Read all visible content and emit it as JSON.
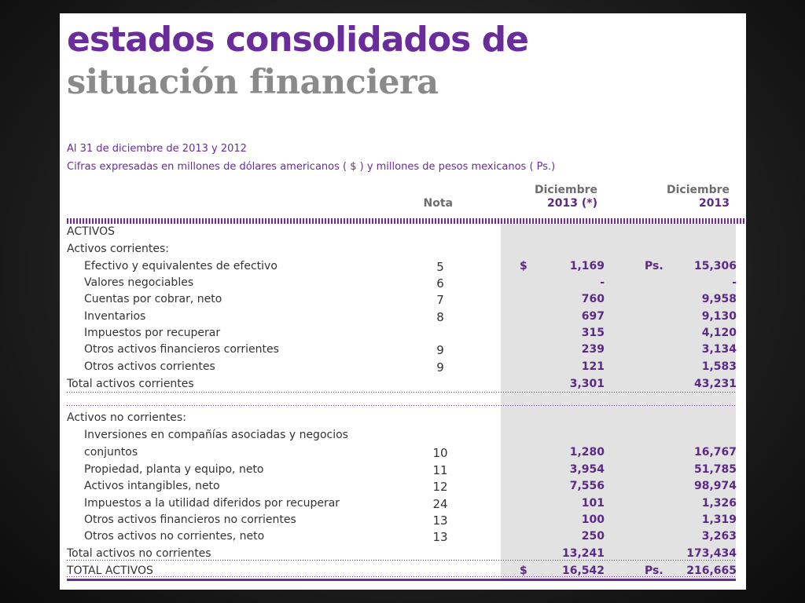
{
  "title": {
    "line1": "estados consolidados de",
    "line2": "situación financiera"
  },
  "subtitle": {
    "date": "Al 31 de diciembre de 2013 y 2012",
    "units": "Cifras expresadas en millones de dólares americanos ( $ ) y millones de pesos mexicanos ( Ps.)"
  },
  "headers": {
    "nota": "Nota",
    "usd_line1": "Diciembre",
    "usd_line2": "2013 (*)",
    "mxn_line1": "Diciembre",
    "mxn_line2": "2013"
  },
  "rows": [
    {
      "label": "ACTIVOS",
      "nota": "",
      "cur1": "",
      "usd": "",
      "cur2": "",
      "mxn": ""
    },
    {
      "label": "Activos corrientes:",
      "nota": "",
      "cur1": "",
      "usd": "",
      "cur2": "",
      "mxn": ""
    },
    {
      "label": "Efectivo y equivalentes de efectivo",
      "nota": "5",
      "cur1": "$",
      "usd": "1,169",
      "cur2": "Ps.",
      "mxn": "15,306"
    },
    {
      "label": "Valores negociables",
      "nota": "6",
      "cur1": "",
      "usd": "-",
      "cur2": "",
      "mxn": "-"
    },
    {
      "label": "Cuentas por cobrar, neto",
      "nota": "7",
      "cur1": "",
      "usd": "760",
      "cur2": "",
      "mxn": "9,958"
    },
    {
      "label": "Inventarios",
      "nota": "8",
      "cur1": "",
      "usd": "697",
      "cur2": "",
      "mxn": "9,130"
    },
    {
      "label": "Impuestos por recuperar",
      "nota": "",
      "cur1": "",
      "usd": "315",
      "cur2": "",
      "mxn": "4,120"
    },
    {
      "label": "Otros activos financieros corrientes",
      "nota": "9",
      "cur1": "",
      "usd": "239",
      "cur2": "",
      "mxn": "3,134"
    },
    {
      "label": "Otros activos corrientes",
      "nota": "9",
      "cur1": "",
      "usd": "121",
      "cur2": "",
      "mxn": "1,583"
    },
    {
      "label": "Total activos corrientes",
      "nota": "",
      "cur1": "",
      "usd": "3,301",
      "cur2": "",
      "mxn": "43,231"
    },
    {
      "label": "Activos no corrientes:",
      "nota": "",
      "cur1": "",
      "usd": "",
      "cur2": "",
      "mxn": ""
    },
    {
      "label": "Inversiones en compañías asociadas y negocios",
      "nota": "",
      "cur1": "",
      "usd": "",
      "cur2": "",
      "mxn": ""
    },
    {
      "label": "conjuntos",
      "nota": "10",
      "cur1": "",
      "usd": "1,280",
      "cur2": "",
      "mxn": "16,767"
    },
    {
      "label": "Propiedad, planta y equipo, neto",
      "nota": "11",
      "cur1": "",
      "usd": "3,954",
      "cur2": "",
      "mxn": "51,785"
    },
    {
      "label": "Activos intangibles, neto",
      "nota": "12",
      "cur1": "",
      "usd": "7,556",
      "cur2": "",
      "mxn": "98,974"
    },
    {
      "label": "Impuestos a la utilidad diferidos por recuperar",
      "nota": "24",
      "cur1": "",
      "usd": "101",
      "cur2": "",
      "mxn": "1,326"
    },
    {
      "label": "Otros activos financieros no corrientes",
      "nota": "13",
      "cur1": "",
      "usd": "100",
      "cur2": "",
      "mxn": "1,319"
    },
    {
      "label": "Otros activos no corrientes, neto",
      "nota": "13",
      "cur1": "",
      "usd": "250",
      "cur2": "",
      "mxn": "3,263"
    },
    {
      "label": "Total activos no corrientes",
      "nota": "",
      "cur1": "",
      "usd": "13,241",
      "cur2": "",
      "mxn": "173,434"
    },
    {
      "label": "TOTAL ACTIVOS",
      "nota": "",
      "cur1": "$",
      "usd": "16,542",
      "cur2": "Ps.",
      "mxn": "216,665"
    }
  ],
  "colors": {
    "purple": "#6a2c9a",
    "gray_title": "#8a8a8a",
    "shade": "#e2e2e2"
  }
}
